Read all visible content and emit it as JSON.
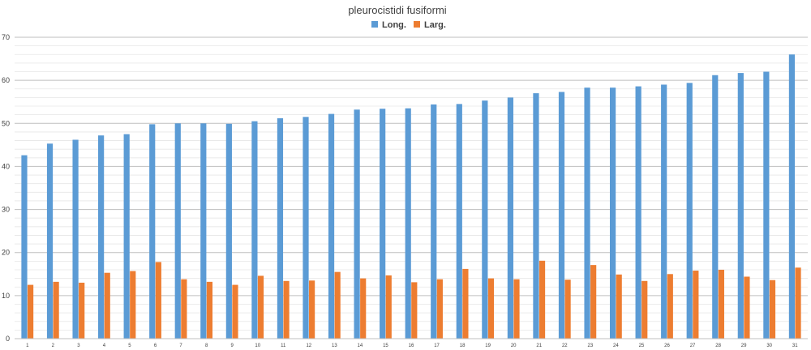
{
  "chart_data": {
    "type": "bar",
    "title": "pleurocistidi fusiformi",
    "xlabel": "",
    "ylabel": "",
    "ylim": [
      0,
      70
    ],
    "y_major_step": 10,
    "y_minor_step": 2,
    "grid": true,
    "legend_position": "top-center",
    "categories": [
      "1",
      "2",
      "3",
      "4",
      "5",
      "6",
      "7",
      "8",
      "9",
      "10",
      "11",
      "12",
      "13",
      "14",
      "15",
      "16",
      "17",
      "18",
      "19",
      "20",
      "21",
      "22",
      "23",
      "24",
      "25",
      "26",
      "27",
      "28",
      "29",
      "30",
      "31"
    ],
    "series": [
      {
        "name": "Long.",
        "color": "#5B9BD5",
        "values": [
          42.6,
          45.3,
          46.2,
          47.2,
          47.5,
          49.8,
          50.0,
          50.0,
          49.9,
          50.5,
          51.2,
          51.5,
          52.2,
          53.2,
          53.4,
          53.5,
          54.4,
          54.5,
          55.3,
          56.0,
          57.0,
          57.3,
          58.3,
          58.3,
          58.6,
          59.0,
          59.4,
          61.2,
          61.7,
          62.0,
          66.0
        ]
      },
      {
        "name": "Larg.",
        "color": "#ED7D31",
        "values": [
          12.5,
          13.2,
          13.0,
          15.3,
          15.7,
          17.8,
          13.8,
          13.2,
          12.5,
          14.6,
          13.4,
          13.5,
          15.5,
          14.0,
          14.7,
          13.1,
          13.8,
          16.2,
          14.0,
          13.8,
          18.1,
          13.7,
          17.1,
          14.9,
          13.4,
          15.0,
          15.8,
          16.0,
          14.4,
          13.6,
          16.5
        ]
      }
    ]
  }
}
